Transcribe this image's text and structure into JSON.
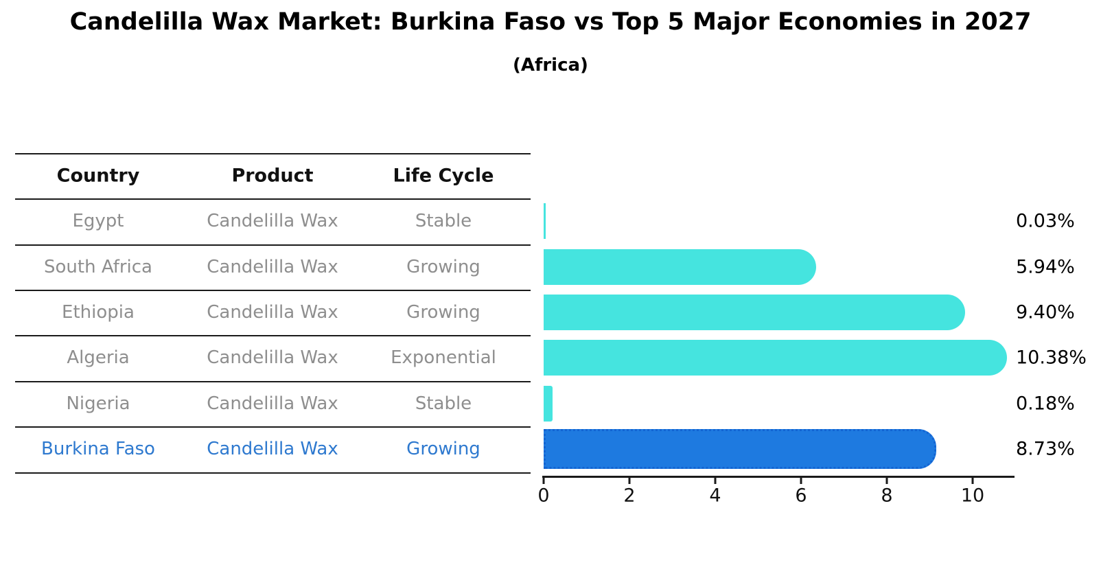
{
  "title": "Candelilla Wax Market: Burkina Faso vs Top 5 Major Economies in 2027",
  "subtitle": "(Africa)",
  "table": {
    "headers": [
      "Country",
      "Product",
      "Life Cycle"
    ],
    "rows": [
      {
        "country": "Egypt",
        "product": "Candelilla Wax",
        "life_cycle": "Stable"
      },
      {
        "country": "South Africa",
        "product": "Candelilla Wax",
        "life_cycle": "Growing"
      },
      {
        "country": "Ethiopia",
        "product": "Candelilla Wax",
        "life_cycle": "Growing"
      },
      {
        "country": "Algeria",
        "product": "Candelilla Wax",
        "life_cycle": "Exponential"
      },
      {
        "country": "Nigeria",
        "product": "Candelilla Wax",
        "life_cycle": "Stable"
      },
      {
        "country": "Burkina Faso",
        "product": "Candelilla Wax",
        "life_cycle": "Growing"
      }
    ],
    "highlight_row": 5
  },
  "chart_data": {
    "type": "bar",
    "orientation": "horizontal",
    "title": "Candelilla Wax Market: Burkina Faso vs Top 5 Major Economies in 2027",
    "subtitle": "(Africa)",
    "categories": [
      "Egypt",
      "South Africa",
      "Ethiopia",
      "Algeria",
      "Nigeria",
      "Burkina Faso"
    ],
    "values": [
      0.03,
      5.94,
      9.4,
      10.38,
      0.18,
      8.73
    ],
    "value_labels": [
      "0.03%",
      "5.94%",
      "9.40%",
      "10.38%",
      "0.18%",
      "8.73%"
    ],
    "x_ticks": [
      "0",
      "2",
      "4",
      "6",
      "8",
      "10"
    ],
    "xlim": [
      0,
      11
    ],
    "grid": false,
    "legend": false,
    "highlight_index": 5,
    "bar_color": "#45E4DF",
    "highlight_color": "#1E7AE0"
  },
  "colors": {
    "bar_cyan": "#45E4DF",
    "bar_blue": "#1E7AE0",
    "highlight_text": "#2E79CF",
    "muted_text": "#8E8E8E",
    "heading_text": "#111111",
    "axis": "#1A1A1A"
  }
}
